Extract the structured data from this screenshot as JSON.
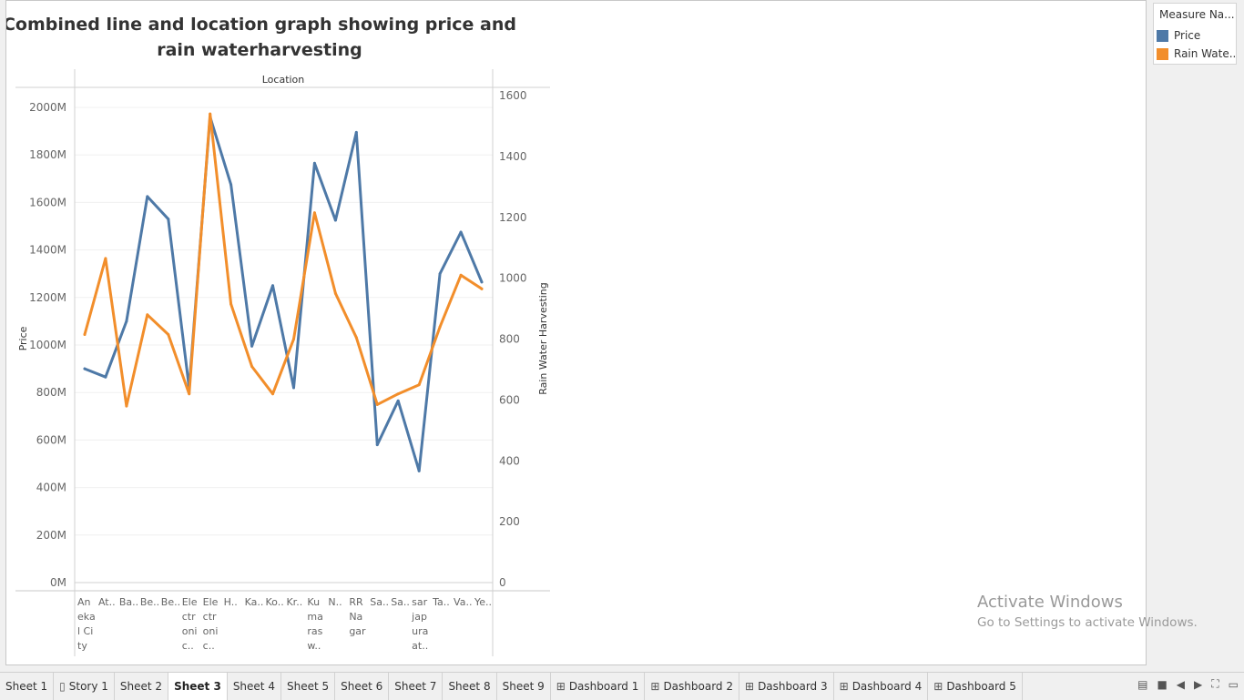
{
  "chart_data": {
    "type": "line",
    "title": "Combined line and location graph showing price and rain waterharvesting",
    "title_lines": [
      "Combined line and location graph showing price and",
      "rain waterharvesting"
    ],
    "xlabel": "Location",
    "ylabel": "Price",
    "y2label": "Rain Water Harvesting",
    "ylim": [
      0,
      2000
    ],
    "y2lim": [
      0,
      1600
    ],
    "y_ticks": [
      "0M",
      "200M",
      "400M",
      "600M",
      "800M",
      "1000M",
      "1200M",
      "1400M",
      "1600M",
      "1800M",
      "2000M"
    ],
    "y2_ticks": [
      "0",
      "200",
      "400",
      "600",
      "800",
      "1000",
      "1200",
      "1400",
      "1600"
    ],
    "grid": true,
    "legend": "right",
    "categories": [
      [
        "An",
        "eka",
        "l Ci",
        "ty"
      ],
      [
        "At.."
      ],
      [
        "Ba.."
      ],
      [
        "Be.."
      ],
      [
        "Be.."
      ],
      [
        "Ele",
        "ctr",
        "oni",
        "c.."
      ],
      [
        "Ele",
        "ctr",
        "oni",
        "c.."
      ],
      [
        "H.."
      ],
      [
        "Ka.."
      ],
      [
        "Ko.."
      ],
      [
        "Kr.."
      ],
      [
        "Ku",
        "ma",
        "ras",
        "w.."
      ],
      [
        "N.."
      ],
      [
        "RR",
        "Na",
        "gar"
      ],
      [
        "Sa.."
      ],
      [
        "Sa.."
      ],
      [
        "sar",
        "jap",
        "ura",
        "at.."
      ],
      [
        "Ta.."
      ],
      [
        "Va.."
      ],
      [
        "Ye.."
      ]
    ],
    "series": [
      {
        "name": "Price",
        "axis": "left",
        "color": "#4e79a7",
        "values": [
          900,
          865,
          1100,
          1625,
          1530,
          820,
          1960,
          1675,
          995,
          1250,
          820,
          1765,
          1525,
          1895,
          580,
          765,
          470,
          1300,
          1475,
          1265
        ]
      },
      {
        "name": "Rain Wate..",
        "axis": "right",
        "color": "#f28e2b",
        "values": [
          815,
          1065,
          580,
          880,
          815,
          620,
          1540,
          915,
          710,
          620,
          800,
          1215,
          950,
          805,
          585,
          620,
          650,
          840,
          1010,
          965
        ]
      }
    ]
  },
  "legend": {
    "title": "Measure Na...",
    "items": [
      {
        "label": "Price",
        "color": "#4e79a7"
      },
      {
        "label": "Rain Wate..",
        "color": "#f28e2b"
      }
    ]
  },
  "watermark": {
    "line1": "Activate Windows",
    "line2": "Go to Settings to activate Windows."
  },
  "tabs": [
    {
      "label": "Sheet 1",
      "icon": ""
    },
    {
      "label": "Story 1",
      "icon": "story-icon"
    },
    {
      "label": "Sheet 2",
      "icon": ""
    },
    {
      "label": "Sheet 3",
      "icon": "",
      "active": true
    },
    {
      "label": "Sheet 4",
      "icon": ""
    },
    {
      "label": "Sheet 5",
      "icon": ""
    },
    {
      "label": "Sheet 6",
      "icon": ""
    },
    {
      "label": "Sheet 7",
      "icon": ""
    },
    {
      "label": "Sheet 8",
      "icon": ""
    },
    {
      "label": "Sheet 9",
      "icon": ""
    },
    {
      "label": "Dashboard 1",
      "icon": "dashboard-icon"
    },
    {
      "label": "Dashboard 2",
      "icon": "dashboard-icon"
    },
    {
      "label": "Dashboard 3",
      "icon": "dashboard-icon"
    },
    {
      "label": "Dashboard 4",
      "icon": "dashboard-icon"
    },
    {
      "label": "Dashboard 5",
      "icon": "dashboard-icon"
    }
  ]
}
